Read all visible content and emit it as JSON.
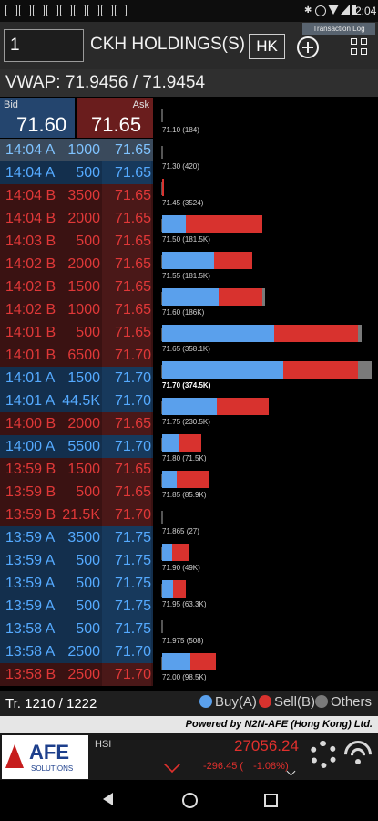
{
  "status_bar": {
    "time": "2:04",
    "left_icons": [
      "stock-icon",
      "stock-icon",
      "stock-icon",
      "stock-icon",
      "stock-icon",
      "image-icon",
      "download-icon",
      "settings-icon",
      "play-icon"
    ],
    "right_icons": [
      "bluetooth-icon",
      "minus-circle-icon",
      "wifi-icon",
      "signal-icon",
      "battery-icon"
    ]
  },
  "header": {
    "code_value": "1",
    "stock_name": "CKH HOLDINGS(S)",
    "market": "HK",
    "transaction_log": "Transaction Log"
  },
  "vwap": {
    "label": "VWAP:",
    "value": "71.9456 / 71.9454"
  },
  "bid_ask": {
    "bid_label": "Bid",
    "bid_value": "71.60",
    "ask_label": "Ask",
    "ask_value": "71.65"
  },
  "trades": [
    {
      "time": "14:04 A",
      "volume": "1000",
      "price": "71.65",
      "side": "hl"
    },
    {
      "time": "14:04 A",
      "volume": "500",
      "price": "71.65",
      "side": "buy"
    },
    {
      "time": "14:04 B",
      "volume": "3500",
      "price": "71.65",
      "side": "sell"
    },
    {
      "time": "14:04 B",
      "volume": "2000",
      "price": "71.65",
      "side": "sell"
    },
    {
      "time": "14:03 B",
      "volume": "500",
      "price": "71.65",
      "side": "sell"
    },
    {
      "time": "14:02 B",
      "volume": "2000",
      "price": "71.65",
      "side": "sell"
    },
    {
      "time": "14:02 B",
      "volume": "1500",
      "price": "71.65",
      "side": "sell"
    },
    {
      "time": "14:02 B",
      "volume": "1000",
      "price": "71.65",
      "side": "sell"
    },
    {
      "time": "14:01 B",
      "volume": "500",
      "price": "71.65",
      "side": "sell"
    },
    {
      "time": "14:01 B",
      "volume": "6500",
      "price": "71.70",
      "side": "sell"
    },
    {
      "time": "14:01 A",
      "volume": "1500",
      "price": "71.70",
      "side": "buy"
    },
    {
      "time": "14:01 A",
      "volume": "44.5K",
      "price": "71.70",
      "side": "buy"
    },
    {
      "time": "14:00 B",
      "volume": "2000",
      "price": "71.65",
      "side": "sell"
    },
    {
      "time": "14:00 A",
      "volume": "5500",
      "price": "71.70",
      "side": "buy"
    },
    {
      "time": "13:59 B",
      "volume": "1500",
      "price": "71.65",
      "side": "sell"
    },
    {
      "time": "13:59 B",
      "volume": "500",
      "price": "71.65",
      "side": "sell"
    },
    {
      "time": "13:59 B",
      "volume": "21.5K",
      "price": "71.70",
      "side": "sell"
    },
    {
      "time": "13:59 A",
      "volume": "3500",
      "price": "71.75",
      "side": "buy"
    },
    {
      "time": "13:59 A",
      "volume": "500",
      "price": "71.75",
      "side": "buy"
    },
    {
      "time": "13:59 A",
      "volume": "500",
      "price": "71.75",
      "side": "buy"
    },
    {
      "time": "13:59 A",
      "volume": "500",
      "price": "71.75",
      "side": "buy"
    },
    {
      "time": "13:58 A",
      "volume": "500",
      "price": "71.75",
      "side": "buy"
    },
    {
      "time": "13:58 A",
      "volume": "2500",
      "price": "71.70",
      "side": "buy"
    },
    {
      "time": "13:58 B",
      "volume": "2500",
      "price": "71.70",
      "side": "sell"
    }
  ],
  "chart_data": {
    "type": "bar",
    "categories": [
      "71.10 (184)",
      "71.30 (420)",
      "71.45 (3524)",
      "71.50 (181.5K)",
      "71.55 (181.5K)",
      "71.60 (186K)",
      "71.65 (358.1K)",
      "71.70 (374.5K)",
      "71.75 (230.5K)",
      "71.80 (71.5K)",
      "71.85 (85.9K)",
      "71.865 (27)",
      "71.90 (49K)",
      "71.95 (63.3K)",
      "71.975 (508)",
      "72.00 (98.5K)"
    ],
    "series": [
      {
        "name": "Buy(A)",
        "values": [
          0,
          0,
          0,
          26,
          57,
          62,
          123,
          133,
          60,
          19,
          16,
          0,
          11,
          12,
          0,
          31
        ]
      },
      {
        "name": "Sell(B)",
        "values": [
          0,
          0,
          2,
          84,
          42,
          48,
          92,
          82,
          57,
          24,
          36,
          0,
          19,
          14,
          0,
          28
        ]
      },
      {
        "name": "Others",
        "values": [
          0,
          0,
          0,
          0,
          0,
          3,
          4,
          15,
          0,
          0,
          0,
          0,
          0,
          0,
          0,
          0
        ]
      }
    ],
    "bold_index": 7,
    "legend": "bottom"
  },
  "footer": {
    "tr_label": "Tr.",
    "tr_value": "1210 / 1222",
    "legend_buy": "Buy(A)",
    "legend_sell": "Sell(B)",
    "legend_others": "Others",
    "colors": {
      "buy": "#5aa0ec",
      "sell": "#d8322e",
      "others": "#7a7a7a"
    }
  },
  "powered_by": "Powered by N2N-AFE (Hong Kong) Ltd.",
  "index": {
    "logo_text": "AFE",
    "logo_sub": "SOLUTIONS",
    "name": "HSI",
    "value": "27056.24",
    "change": "-296.45 (",
    "change_pct": "-1.08%)"
  }
}
